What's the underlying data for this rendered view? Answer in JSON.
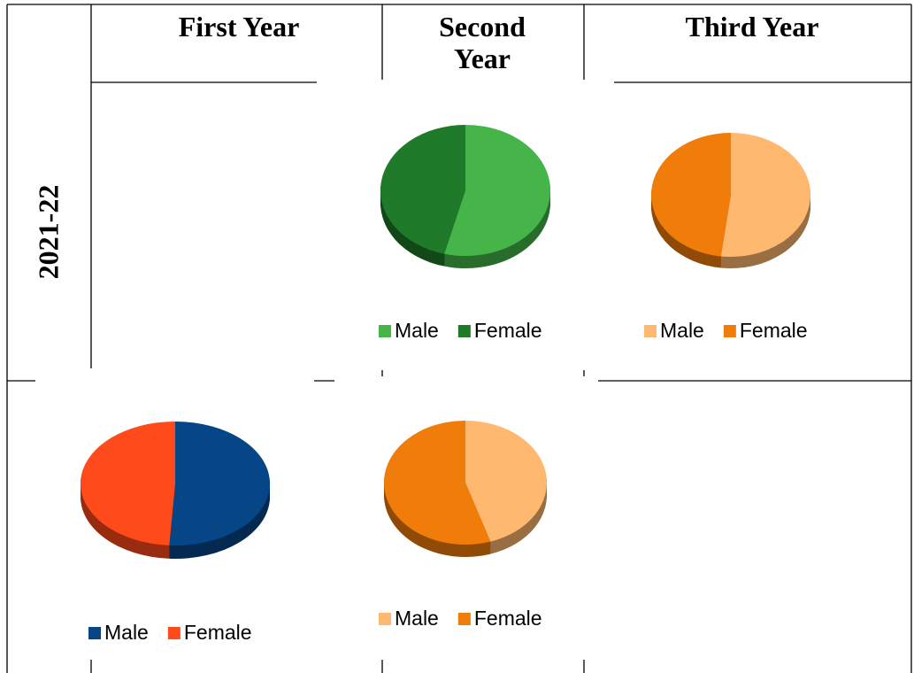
{
  "table": {
    "headers": [
      "First Year",
      "Second Year",
      "Third Year"
    ],
    "row_labels": [
      "2021-22"
    ]
  },
  "chart_data": [
    {
      "type": "pie",
      "categories": [
        "Male",
        "Female"
      ],
      "values": [
        54,
        46
      ],
      "colors": [
        "#45b549",
        "#1f7a2a"
      ]
    },
    {
      "type": "pie",
      "categories": [
        "Male",
        "Female"
      ],
      "values": [
        52,
        48
      ],
      "colors": [
        "#ffb870",
        "#f07d0a"
      ]
    },
    {
      "type": "pie",
      "categories": [
        "Male",
        "Female"
      ],
      "values": [
        51,
        49
      ],
      "colors": [
        "#064687",
        "#ff4a1b"
      ]
    },
    {
      "type": "pie",
      "categories": [
        "Male",
        "Female"
      ],
      "values": [
        45,
        55
      ],
      "colors": [
        "#ffb870",
        "#f07d0a"
      ]
    }
  ]
}
